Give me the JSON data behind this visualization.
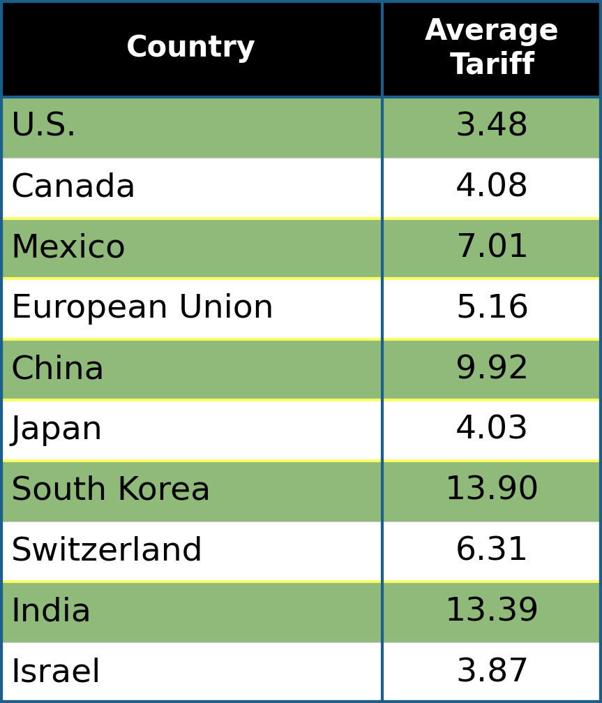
{
  "header": [
    "Country",
    "Average\nTariff"
  ],
  "rows": [
    [
      "U.S.",
      "3.48"
    ],
    [
      "Canada",
      "4.08"
    ],
    [
      "Mexico",
      "7.01"
    ],
    [
      "European Union",
      "5.16"
    ],
    [
      "China",
      "9.92"
    ],
    [
      "Japan",
      "4.03"
    ],
    [
      "South Korea",
      "13.90"
    ],
    [
      "Switzerland",
      "6.31"
    ],
    [
      "India",
      "13.39"
    ],
    [
      "Israel",
      "3.87"
    ]
  ],
  "row_colors": [
    "#8fba7a",
    "#ffffff",
    "#8fba7a",
    "#ffffff",
    "#8fba7a",
    "#ffffff",
    "#8fba7a",
    "#ffffff",
    "#8fba7a",
    "#ffffff"
  ],
  "yellow_dividers_above": [
    2,
    3,
    4,
    5,
    6,
    8
  ],
  "header_bg": "#000000",
  "header_fg": "#ffffff",
  "cell_text_color": "#000000",
  "outer_border_color": "#1c5f8a",
  "col_divider_color": "#1c5f8a",
  "yellow_line_color": "#ffff66",
  "col_split": 0.635,
  "header_fontsize": 30,
  "cell_fontsize": 34,
  "header_row_ratio": 1.6
}
